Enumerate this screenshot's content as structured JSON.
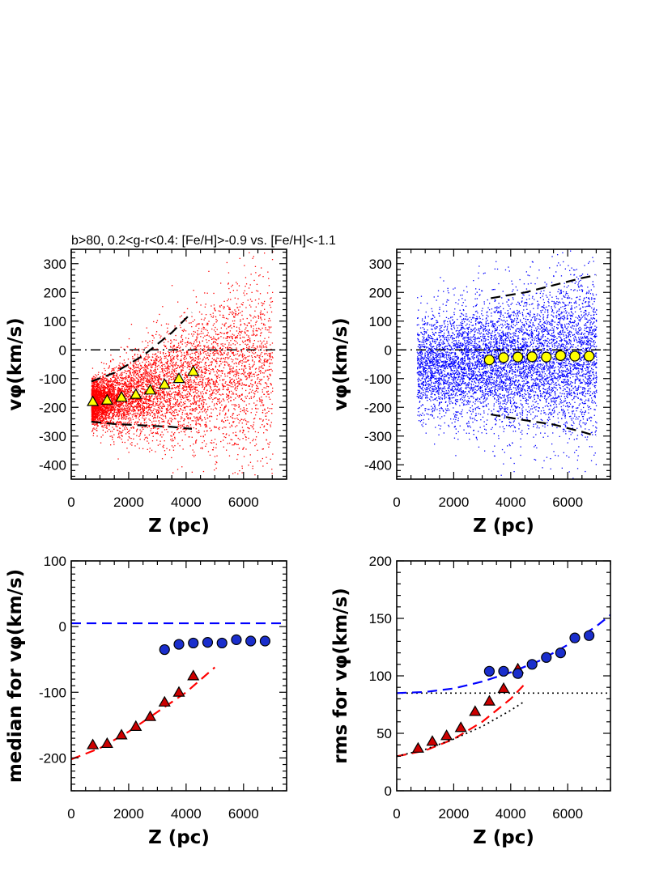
{
  "figure": {
    "title": "b>80, 0.2<g-r<0.4: [Fe/H]>-0.9 vs. [Fe/H]<-1.1"
  },
  "colors": {
    "metal_rich": "#ff0000",
    "metal_poor": "#0000ff",
    "triangle_top_fill": "#ffff00",
    "circle_top_fill": "#ffff00",
    "triangle_bottom_fill": "#cc0000",
    "circle_bottom_fill": "#1a2ecc",
    "frame": "#000000"
  },
  "chart_data": [
    {
      "type": "scatter",
      "panel": "top-left",
      "xlabel": "Z (pc)",
      "ylabel": "vφ(km/s)",
      "xlim": [
        0,
        7500
      ],
      "ylim": [
        -450,
        350
      ],
      "xticks": [
        "0",
        "2000",
        "4000",
        "6000"
      ],
      "yticks": [
        "-400",
        "-300",
        "-200",
        "-100",
        "0",
        "100",
        "200",
        "300"
      ],
      "xtick_values": [
        0,
        2000,
        4000,
        6000
      ],
      "ytick_values": [
        -400,
        -300,
        -200,
        -100,
        0,
        100,
        200,
        300
      ],
      "grid": false,
      "cloud": {
        "color": "metal_rich",
        "z_range": [
          700,
          7000
        ],
        "v_center_at_z_min": -185,
        "v_center_slope_per_1000pc": 22,
        "v_sigma_at_z_min": 35,
        "v_sigma_slope_per_1000pc": 22,
        "density": "dense at low Z"
      },
      "series": [
        {
          "marker": "triangle",
          "fill": "triangle_top_fill",
          "x": [
            750,
            1250,
            1750,
            2250,
            2750,
            3250,
            3750,
            4250
          ],
          "y": [
            -180,
            -175,
            -165,
            -155,
            -140,
            -120,
            -100,
            -75
          ]
        }
      ],
      "reference_lines": [
        {
          "style": "dashdot",
          "y": 0,
          "x_range": [
            0,
            7500
          ]
        }
      ],
      "envelope_lines": [
        {
          "style": "dashed",
          "x": [
            700,
            1500,
            2500,
            3500,
            4200
          ],
          "y": [
            -110,
            -80,
            -20,
            60,
            130
          ]
        },
        {
          "style": "dashed",
          "x": [
            700,
            1500,
            2500,
            3500,
            4200
          ],
          "y": [
            -250,
            -258,
            -263,
            -268,
            -275
          ]
        }
      ]
    },
    {
      "type": "scatter",
      "panel": "top-right",
      "xlabel": "Z (pc)",
      "ylabel": "vφ(km/s)",
      "xlim": [
        0,
        7500
      ],
      "ylim": [
        -450,
        350
      ],
      "xticks": [
        "0",
        "2000",
        "4000",
        "6000"
      ],
      "yticks": [
        "-400",
        "-300",
        "-200",
        "-100",
        "0",
        "100",
        "200",
        "300"
      ],
      "xtick_values": [
        0,
        2000,
        4000,
        6000
      ],
      "ytick_values": [
        -400,
        -300,
        -200,
        -100,
        0,
        100,
        200,
        300
      ],
      "grid": false,
      "cloud": {
        "color": "metal_poor",
        "z_range": [
          700,
          7000
        ],
        "v_center_at_z_min": -55,
        "v_center_slope_per_1000pc": 5,
        "v_sigma_at_z_min": 85,
        "v_sigma_slope_per_1000pc": 9,
        "density": "uniform"
      },
      "series": [
        {
          "marker": "circle",
          "fill": "circle_top_fill",
          "x": [
            3250,
            3750,
            4250,
            4750,
            5250,
            5750,
            6250,
            6750
          ],
          "y": [
            -35,
            -27,
            -25,
            -24,
            -25,
            -20,
            -22,
            -22
          ]
        }
      ],
      "reference_lines": [
        {
          "style": "dashdot",
          "y": 0,
          "x_range": [
            0,
            7500
          ]
        }
      ],
      "envelope_lines": [
        {
          "style": "dashed",
          "x": [
            3300,
            4500,
            5500,
            6500,
            7000
          ],
          "y": [
            180,
            200,
            225,
            250,
            260
          ]
        },
        {
          "style": "dashed",
          "x": [
            3300,
            4500,
            5500,
            6500,
            7000
          ],
          "y": [
            -225,
            -245,
            -260,
            -285,
            -300
          ]
        }
      ]
    },
    {
      "type": "scatter",
      "panel": "bottom-left",
      "xlabel": "Z (pc)",
      "ylabel": "median for vφ(km/s)",
      "xlim": [
        0,
        7500
      ],
      "ylim": [
        -250,
        100
      ],
      "xticks": [
        "0",
        "2000",
        "4000",
        "6000"
      ],
      "yticks": [
        "-200",
        "-100",
        "0",
        "100"
      ],
      "xtick_values": [
        0,
        2000,
        4000,
        6000
      ],
      "ytick_values": [
        -200,
        -100,
        0,
        100
      ],
      "grid": false,
      "series": [
        {
          "marker": "triangle",
          "fill": "triangle_bottom_fill",
          "x": [
            750,
            1250,
            1750,
            2250,
            2750,
            3250,
            3750,
            4250
          ],
          "y": [
            -180,
            -178,
            -165,
            -152,
            -137,
            -115,
            -100,
            -75
          ]
        },
        {
          "marker": "circle",
          "fill": "circle_bottom_fill",
          "x": [
            3250,
            3750,
            4250,
            4750,
            5250,
            5750,
            6250,
            6750
          ],
          "y": [
            -35,
            -27,
            -25,
            -24,
            -25,
            -20,
            -22,
            -22
          ]
        }
      ],
      "reference_lines": [
        {
          "style": "dashed",
          "color": "metal_poor",
          "y": 5,
          "x_range": [
            0,
            7500
          ]
        }
      ],
      "fit_lines": [
        {
          "style": "dashed",
          "color": "metal_rich",
          "x": [
            0,
            1000,
            2000,
            3000,
            4000,
            5000
          ],
          "y": [
            -202,
            -185,
            -160,
            -130,
            -100,
            -62
          ]
        }
      ]
    },
    {
      "type": "scatter",
      "panel": "bottom-right",
      "xlabel": "Z (pc)",
      "ylabel": "rms for vφ(km/s)",
      "xlim": [
        0,
        7500
      ],
      "ylim": [
        0,
        200
      ],
      "xticks": [
        "0",
        "2000",
        "4000",
        "6000"
      ],
      "yticks": [
        "0",
        "50",
        "100",
        "150",
        "200"
      ],
      "xtick_values": [
        0,
        2000,
        4000,
        6000
      ],
      "ytick_values": [
        0,
        50,
        100,
        150,
        200
      ],
      "grid": false,
      "series": [
        {
          "marker": "triangle",
          "fill": "triangle_bottom_fill",
          "x": [
            750,
            1250,
            1750,
            2250,
            2750,
            3250,
            3750,
            4250
          ],
          "y": [
            37,
            43,
            48,
            55,
            69,
            78,
            89,
            106
          ]
        },
        {
          "marker": "circle",
          "fill": "circle_bottom_fill",
          "x": [
            3250,
            3750,
            4250,
            4750,
            5250,
            5750,
            6250,
            6750
          ],
          "y": [
            104,
            104,
            102,
            110,
            116,
            120,
            133,
            135
          ]
        }
      ],
      "reference_lines": [
        {
          "style": "dotted",
          "y": 85,
          "x_range": [
            0,
            7500
          ]
        }
      ],
      "fit_lines": [
        {
          "style": "dashed",
          "color": "metal_poor",
          "x": [
            0,
            1000,
            2000,
            3000,
            4000,
            5000,
            6000,
            7000,
            7500
          ],
          "y": [
            85,
            86,
            89,
            95,
            103,
            113,
            127,
            143,
            153
          ]
        },
        {
          "style": "dashed",
          "color": "metal_rich",
          "x": [
            0,
            1000,
            2000,
            3000,
            4000,
            4500
          ],
          "y": [
            30,
            35,
            45,
            60,
            80,
            93
          ]
        },
        {
          "style": "dotted",
          "x": [
            0,
            1000,
            2000,
            3000,
            4000,
            4500
          ],
          "y": [
            30,
            36,
            45,
            56,
            70,
            78
          ]
        }
      ]
    }
  ]
}
